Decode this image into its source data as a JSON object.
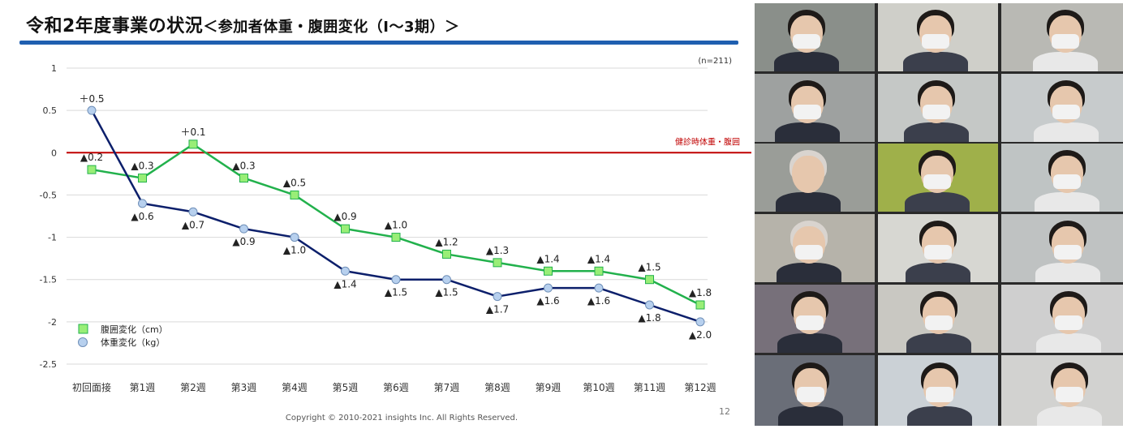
{
  "slide": {
    "title_main": "令和2年度事業の状況",
    "title_sub": "＜参加者体重・腹囲変化（Ⅰ～3期）＞",
    "copyright": "Copyright © 2010-2021 insights Inc. All Rights Reserved.",
    "page_number": "12"
  },
  "chart_data": {
    "type": "line",
    "sample_note": "(n=211)",
    "categories": [
      "初回面接",
      "第1週",
      "第2週",
      "第3週",
      "第4週",
      "第5週",
      "第6週",
      "第7週",
      "第8週",
      "第9週",
      "第10週",
      "第11週",
      "第12週"
    ],
    "ylim": [
      -2.5,
      1
    ],
    "yticks": [
      1,
      0.5,
      0,
      -0.5,
      -1,
      -1.5,
      -2,
      -2.5
    ],
    "ytick_labels": [
      "1",
      "0.5",
      "0",
      "-0.5",
      "-1",
      "-1.5",
      "-2",
      "-2.5"
    ],
    "grid": true,
    "legend_position": "bottom-left",
    "baseline": {
      "value": 0,
      "label": "健診時体重・腹囲",
      "color": "#c00000"
    },
    "series": [
      {
        "name": "腹囲変化（cm）",
        "color": "#22b14c",
        "marker": "square",
        "marker_fill": "#99ee77",
        "values": [
          -0.2,
          -0.3,
          0.1,
          -0.3,
          -0.5,
          -0.9,
          -1.0,
          -1.2,
          -1.3,
          -1.4,
          -1.4,
          -1.5,
          -1.8
        ],
        "labels": [
          "▲0.2",
          "▲0.3",
          "＋0.1",
          "▲0.3",
          "▲0.5",
          "▲0.9",
          "▲1.0",
          "▲1.2",
          "▲1.3",
          "▲1.4",
          "▲1.4",
          "▲1.5",
          "▲1.8"
        ]
      },
      {
        "name": "体重変化（kg）",
        "color": "#0c1f6b",
        "marker": "circle",
        "marker_fill": "#b7d0ee",
        "values": [
          0.5,
          -0.6,
          -0.7,
          -0.9,
          -1.0,
          -1.4,
          -1.5,
          -1.5,
          -1.7,
          -1.6,
          -1.6,
          -1.8,
          -2.0
        ],
        "labels": [
          "＋0.5",
          "▲0.6",
          "▲0.7",
          "▲0.9",
          "▲1.0",
          "▲1.4",
          "▲1.5",
          "▲1.5",
          "▲1.7",
          "▲1.6",
          "▲1.6",
          "▲1.8",
          "▲2.0"
        ]
      }
    ]
  },
  "video": {
    "tile_colors": [
      "#8a8f8a",
      "#cfcfc9",
      "#b9b9b4",
      "#9ea1a0",
      "#c5c8c6",
      "#c7cbcc",
      "#9a9d98",
      "#9fb04a",
      "#bfc4c4",
      "#b6b3aa",
      "#d7d7d2",
      "#bfc2c2",
      "#77707a",
      "#c9c8c2",
      "#cfcfcf",
      "#6a6e78",
      "#cbd1d6",
      "#d2d2d0"
    ]
  }
}
